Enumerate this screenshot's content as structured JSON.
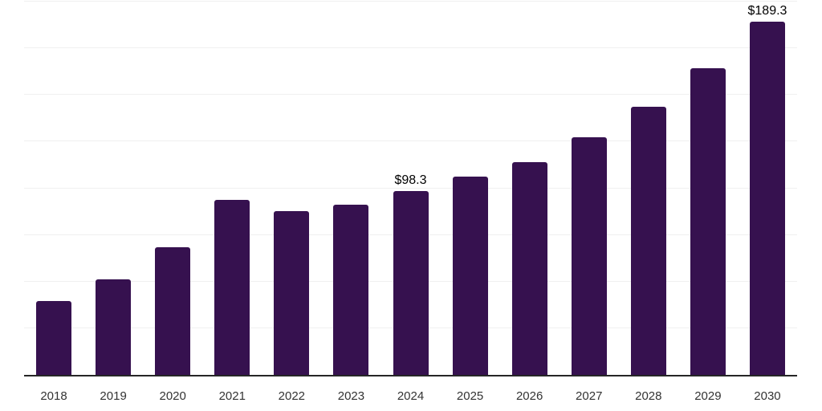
{
  "chart_data": {
    "type": "bar",
    "title": "",
    "xlabel": "",
    "ylabel": "",
    "categories": [
      "2018",
      "2019",
      "2020",
      "2021",
      "2022",
      "2023",
      "2024",
      "2025",
      "2026",
      "2027",
      "2028",
      "2029",
      "2030"
    ],
    "values": [
      39.6,
      51.2,
      68.4,
      93.8,
      87.7,
      91.2,
      98.3,
      106.2,
      114.0,
      127.3,
      143.7,
      164.3,
      189.3
    ],
    "bar_labels": [
      "",
      "",
      "",
      "",
      "",
      "",
      "$98.3",
      "",
      "",
      "",
      "",
      "",
      "$189.3"
    ],
    "ylim": [
      0,
      200
    ],
    "grid": {
      "horizontal": true,
      "step": 25
    },
    "legend": "none",
    "colors": {
      "bar": "#36114F",
      "grid_line": "#f0f0f0",
      "axis_line": "#262626",
      "tick_label": "#333333",
      "value_label": "#000000"
    }
  }
}
